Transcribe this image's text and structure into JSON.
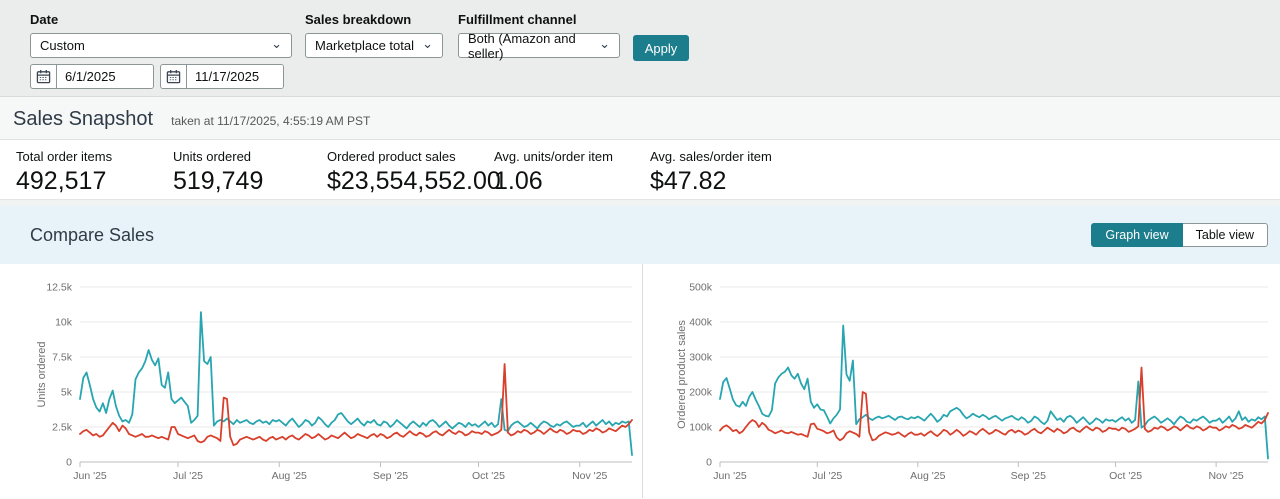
{
  "filters": {
    "date": {
      "label": "Date",
      "selected": "Custom",
      "start_date": "6/1/2025",
      "end_date": "11/17/2025"
    },
    "sales_breakdown": {
      "label": "Sales breakdown",
      "selected": "Marketplace total"
    },
    "fulfillment_channel": {
      "label": "Fulfillment channel",
      "selected": "Both (Amazon and seller)"
    },
    "apply_label": "Apply"
  },
  "sales_snapshot": {
    "title": "Sales Snapshot",
    "taken_at": "taken at 11/17/2025, 4:55:19 AM PST",
    "stats": [
      {
        "label": "Total order items",
        "value": "492,517"
      },
      {
        "label": "Units ordered",
        "value": "519,749"
      },
      {
        "label": "Ordered product sales",
        "value": "$23,554,552.00"
      },
      {
        "label": "Avg. units/order item",
        "value": "1.06"
      },
      {
        "label": "Avg. sales/order item",
        "value": "$47.82"
      }
    ]
  },
  "compare_sales": {
    "title": "Compare Sales",
    "view_toggle": {
      "graph_label": "Graph view",
      "table_label": "Table view",
      "active": "graph"
    }
  },
  "colors": {
    "accent_teal": "#1c7d8c",
    "line_teal": "#27a5b0",
    "line_red": "#d8402c",
    "compare_band_blue": "#e7f3f9"
  },
  "chart_data": [
    {
      "type": "line",
      "ylabel": "Units ordered",
      "xlabel": "",
      "ylim": [
        0,
        12500
      ],
      "grid": "horizontal",
      "legend": "none",
      "x_start": "6/1/2025",
      "x_end": "11/17/2025",
      "x_interval": "daily",
      "y_ticks": [
        {
          "value": 0,
          "label": "0"
        },
        {
          "value": 2500,
          "label": "2.5k"
        },
        {
          "value": 5000,
          "label": "5k"
        },
        {
          "value": 7500,
          "label": "7.5k"
        },
        {
          "value": 10000,
          "label": "10k"
        },
        {
          "value": 12500,
          "label": "12.5k"
        }
      ],
      "x_ticks": [
        {
          "label": "Jun '25",
          "index": 0
        },
        {
          "label": "Jul '25",
          "index": 30
        },
        {
          "label": "Aug '25",
          "index": 61
        },
        {
          "label": "Sep '25",
          "index": 92
        },
        {
          "label": "Oct '25",
          "index": 122
        },
        {
          "label": "Nov '25",
          "index": 153
        }
      ],
      "series": [
        {
          "name": "teal",
          "color": "#27a5b0",
          "values": [
            4500,
            6000,
            6400,
            5500,
            4500,
            3900,
            3600,
            4200,
            3500,
            4500,
            5100,
            4000,
            3300,
            2900,
            3000,
            2800,
            3400,
            5900,
            6400,
            6700,
            7200,
            8000,
            7300,
            6900,
            7400,
            5500,
            5300,
            6400,
            4500,
            4200,
            4400,
            4600,
            4300,
            4000,
            2800,
            3000,
            3300,
            10700,
            7200,
            7000,
            7500,
            2600,
            2900,
            3000,
            2900,
            3100,
            2900,
            2700,
            3000,
            2800,
            2900,
            3000,
            2800,
            2700,
            2900,
            3000,
            2800,
            2900,
            2700,
            3000,
            2900,
            3000,
            2800,
            2600,
            2900,
            3100,
            2800,
            2500,
            2700,
            3000,
            2900,
            2600,
            2800,
            3200,
            3000,
            2700,
            2500,
            2800,
            3000,
            3400,
            3500,
            3200,
            2900,
            2700,
            2900,
            3100,
            2800,
            2600,
            2900,
            2800,
            3000,
            2700,
            2600,
            2900,
            2800,
            2500,
            2700,
            3000,
            2800,
            2600,
            2400,
            2700,
            2900,
            2700,
            2500,
            2800,
            2600,
            2900,
            3000,
            2800,
            2500,
            2700,
            2900,
            2600,
            2400,
            2600,
            2800,
            2700,
            2500,
            2800,
            2600,
            2700,
            2500,
            2700,
            2900,
            2600,
            2800,
            2500,
            2700,
            4500,
            2300,
            2200,
            2600,
            2800,
            2900,
            2700,
            2500,
            2600,
            2800,
            2600,
            2400,
            2700,
            2900,
            2800,
            2600,
            2500,
            2700,
            2600,
            2800,
            2900,
            2700,
            2500,
            2600,
            2600,
            2800,
            2500,
            2700,
            2900,
            2600,
            2800,
            3000,
            2700,
            2900,
            2600,
            2800,
            2700,
            2900,
            2800,
            2900,
            500
          ]
        },
        {
          "name": "red",
          "color": "#d8402c",
          "values": [
            2000,
            2200,
            2300,
            2100,
            1900,
            2000,
            1800,
            1900,
            2200,
            2500,
            2800,
            2600,
            2200,
            2600,
            2400,
            2000,
            1900,
            1800,
            1900,
            2000,
            1800,
            1800,
            1900,
            1800,
            1700,
            1800,
            1700,
            1600,
            2500,
            2500,
            2000,
            1900,
            1800,
            1700,
            1800,
            1900,
            1500,
            1400,
            1500,
            1800,
            1900,
            1800,
            1700,
            1500,
            4600,
            4500,
            1800,
            1200,
            1300,
            1600,
            1700,
            1800,
            1700,
            1600,
            1700,
            1800,
            1600,
            1500,
            1700,
            1800,
            1600,
            1700,
            1800,
            1600,
            1800,
            1900,
            1700,
            1600,
            1800,
            2000,
            1900,
            1700,
            1800,
            2000,
            1800,
            1600,
            1700,
            1900,
            1800,
            1700,
            1900,
            2100,
            1900,
            1700,
            1800,
            2000,
            1900,
            1800,
            1700,
            1900,
            2000,
            1800,
            2000,
            1900,
            1700,
            1800,
            2000,
            2100,
            1900,
            1800,
            2000,
            2200,
            2000,
            1900,
            2100,
            2000,
            1800,
            1900,
            2100,
            2200,
            2000,
            1900,
            2100,
            2300,
            2100,
            2000,
            2200,
            2100,
            1900,
            2000,
            2200,
            2100,
            2100,
            2000,
            2200,
            2100,
            1900,
            2000,
            2100,
            2300,
            7000,
            2100,
            1900,
            2000,
            2200,
            2100,
            2300,
            2200,
            2000,
            2100,
            2300,
            2200,
            2000,
            2200,
            2400,
            2200,
            2100,
            2300,
            2200,
            2000,
            2100,
            2300,
            2200,
            2200,
            2000,
            2100,
            2300,
            2200,
            2400,
            2300,
            2100,
            2200,
            2400,
            2300,
            2200,
            2400,
            2600,
            2500,
            2700,
            3000
          ]
        }
      ]
    },
    {
      "type": "line",
      "ylabel": "Ordered product sales",
      "xlabel": "",
      "ylim": [
        0,
        500000
      ],
      "grid": "horizontal",
      "legend": "none",
      "x_start": "6/1/2025",
      "x_end": "11/17/2025",
      "x_interval": "daily",
      "y_ticks": [
        {
          "value": 0,
          "label": "0"
        },
        {
          "value": 100000,
          "label": "100k"
        },
        {
          "value": 200000,
          "label": "200k"
        },
        {
          "value": 300000,
          "label": "300k"
        },
        {
          "value": 400000,
          "label": "400k"
        },
        {
          "value": 500000,
          "label": "500k"
        }
      ],
      "x_ticks": [
        {
          "label": "Jun '25",
          "index": 0
        },
        {
          "label": "Jul '25",
          "index": 30
        },
        {
          "label": "Aug '25",
          "index": 61
        },
        {
          "label": "Sep '25",
          "index": 92
        },
        {
          "label": "Oct '25",
          "index": 122
        },
        {
          "label": "Nov '25",
          "index": 153
        }
      ],
      "series": [
        {
          "name": "teal",
          "color": "#27a5b0",
          "values": [
            180000,
            228000,
            240000,
            210000,
            178000,
            162000,
            158000,
            172000,
            160000,
            186000,
            200000,
            178000,
            160000,
            138000,
            132000,
            130000,
            148000,
            224000,
            242000,
            252000,
            258000,
            270000,
            248000,
            238000,
            252000,
            224000,
            208000,
            238000,
            172000,
            155000,
            165000,
            150000,
            148000,
            130000,
            110000,
            125000,
            135000,
            150000,
            390000,
            250000,
            232000,
            290000,
            108000,
            122000,
            128000,
            135000,
            125000,
            120000,
            126000,
            130000,
            125000,
            128000,
            132000,
            126000,
            120000,
            128000,
            130000,
            125000,
            122000,
            128000,
            125000,
            130000,
            125000,
            118000,
            128000,
            138000,
            128000,
            115000,
            122000,
            135000,
            130000,
            145000,
            150000,
            155000,
            148000,
            135000,
            125000,
            130000,
            138000,
            132000,
            128000,
            135000,
            130000,
            122000,
            128000,
            132000,
            125000,
            118000,
            125000,
            128000,
            132000,
            125000,
            120000,
            128000,
            122000,
            112000,
            118000,
            130000,
            125000,
            115000,
            108000,
            118000,
            145000,
            132000,
            120000,
            125000,
            115000,
            128000,
            132000,
            125000,
            112000,
            120000,
            128000,
            118000,
            108000,
            115000,
            125000,
            120000,
            112000,
            122000,
            118000,
            120000,
            115000,
            122000,
            128000,
            118000,
            125000,
            112000,
            120000,
            230000,
            98000,
            105000,
            118000,
            125000,
            130000,
            122000,
            112000,
            118000,
            125000,
            118000,
            108000,
            120000,
            130000,
            125000,
            115000,
            112000,
            122000,
            118000,
            125000,
            130000,
            122000,
            112000,
            118000,
            118000,
            125000,
            112000,
            120000,
            130000,
            115000,
            125000,
            145000,
            120000,
            128000,
            115000,
            122000,
            118000,
            128000,
            122000,
            130000,
            10000
          ]
        },
        {
          "name": "red",
          "color": "#d8402c",
          "values": [
            90000,
            100000,
            105000,
            98000,
            88000,
            92000,
            82000,
            88000,
            100000,
            112000,
            120000,
            115000,
            100000,
            112000,
            105000,
            92000,
            88000,
            82000,
            86000,
            90000,
            84000,
            82000,
            86000,
            82000,
            78000,
            80000,
            76000,
            72000,
            108000,
            110000,
            95000,
            92000,
            88000,
            82000,
            85000,
            90000,
            70000,
            62000,
            68000,
            82000,
            88000,
            84000,
            80000,
            72000,
            200000,
            195000,
            85000,
            62000,
            65000,
            75000,
            80000,
            85000,
            82000,
            78000,
            80000,
            85000,
            78000,
            72000,
            80000,
            85000,
            78000,
            78000,
            82000,
            75000,
            82000,
            88000,
            80000,
            74000,
            82000,
            92000,
            88000,
            78000,
            84000,
            92000,
            85000,
            75000,
            80000,
            88000,
            84000,
            78000,
            88000,
            95000,
            88000,
            80000,
            84000,
            92000,
            88000,
            82000,
            78000,
            88000,
            92000,
            84000,
            90000,
            86000,
            78000,
            82000,
            90000,
            95000,
            86000,
            82000,
            90000,
            98000,
            92000,
            86000,
            95000,
            90000,
            82000,
            86000,
            95000,
            98000,
            90000,
            86000,
            95000,
            102000,
            95000,
            90000,
            98000,
            95000,
            86000,
            90000,
            98000,
            95000,
            95000,
            90000,
            98000,
            95000,
            86000,
            90000,
            95000,
            102000,
            270000,
            95000,
            86000,
            90000,
            98000,
            95000,
            102000,
            98000,
            90000,
            95000,
            102000,
            98000,
            90000,
            98000,
            106000,
            98000,
            95000,
            102000,
            98000,
            90000,
            95000,
            102000,
            98000,
            98000,
            90000,
            95000,
            102000,
            98000,
            106000,
            102000,
            95000,
            98000,
            106000,
            102000,
            98000,
            106000,
            115000,
            110000,
            120000,
            140000
          ]
        }
      ]
    }
  ]
}
